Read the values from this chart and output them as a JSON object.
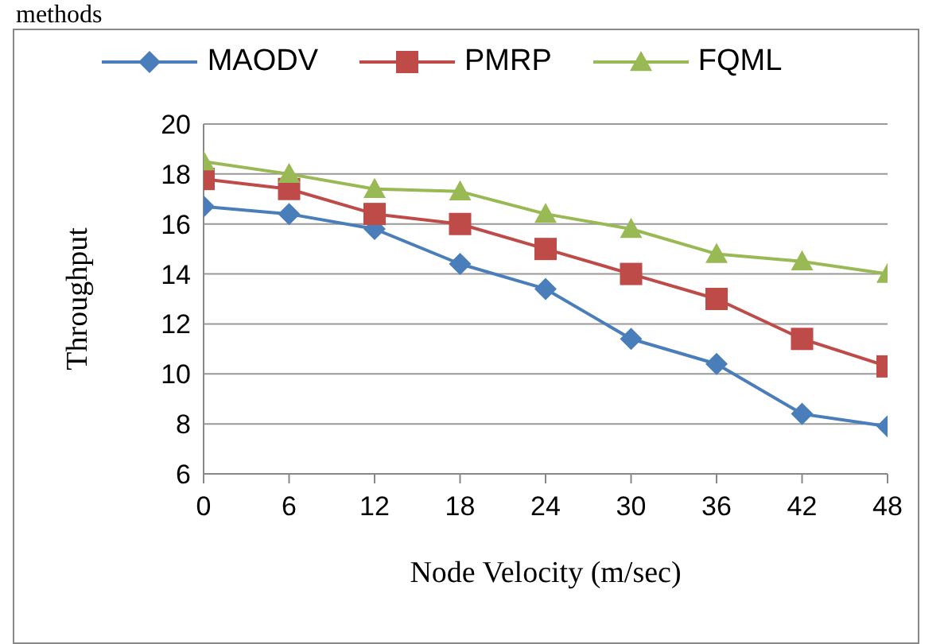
{
  "chart_data": {
    "type": "line",
    "xlabel": "Node Velocity (m/sec)",
    "ylabel": "Throughput",
    "annotations": [
      "methods"
    ],
    "x": [
      0,
      6,
      12,
      18,
      24,
      30,
      36,
      42,
      48
    ],
    "xlim": [
      0,
      48
    ],
    "xticks": [
      0,
      6,
      12,
      18,
      24,
      30,
      36,
      42,
      48
    ],
    "ylim": [
      6,
      20
    ],
    "yticks": [
      6,
      8,
      10,
      12,
      14,
      16,
      18,
      20
    ],
    "grid": "y",
    "legend": "top",
    "series": [
      {
        "name": "MAODV",
        "color": "#4a7ebb",
        "marker": "diamond",
        "values": [
          16.7,
          16.4,
          15.8,
          14.4,
          13.4,
          11.4,
          10.4,
          8.4,
          7.9
        ]
      },
      {
        "name": "PMRP",
        "color": "#be4b48",
        "marker": "square",
        "values": [
          17.8,
          17.4,
          16.4,
          16.0,
          15.0,
          14.0,
          13.0,
          11.4,
          10.3
        ]
      },
      {
        "name": "FQML",
        "color": "#98b954",
        "marker": "triangle",
        "values": [
          18.5,
          18.0,
          17.4,
          17.3,
          16.4,
          15.8,
          14.8,
          14.5,
          14.0
        ]
      }
    ]
  }
}
